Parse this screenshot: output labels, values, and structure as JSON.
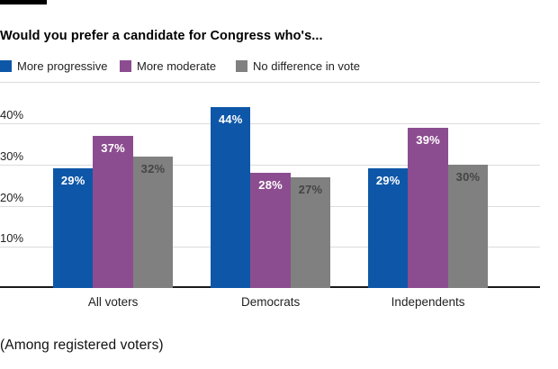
{
  "header": {
    "title": "Would you prefer a candidate for Congress who's..."
  },
  "footnote": "(Among registered voters)",
  "chart_data": {
    "type": "bar",
    "title": "Would you prefer a candidate for Congress who's...",
    "categories": [
      "All voters",
      "Democrats",
      "Independents"
    ],
    "series": [
      {
        "name": "More progressive",
        "color": "#0e57a8",
        "label_color": "#ffffff",
        "values": [
          29,
          44,
          29
        ]
      },
      {
        "name": "More moderate",
        "color": "#8c4d90",
        "label_color": "#ffffff",
        "values": [
          37,
          28,
          39
        ]
      },
      {
        "name": "No difference in vote",
        "color": "#808080",
        "label_color": "#454545",
        "values": [
          32,
          27,
          30
        ]
      }
    ],
    "value_suffix": "%",
    "xlabel": "",
    "ylabel": "",
    "yaxis": {
      "min": 0,
      "max": 50,
      "step": 10,
      "labeled_ticks": [
        "10%",
        "20%",
        "30%",
        "40%"
      ],
      "grid": true
    },
    "legend_position": "top",
    "data_labels": "inside-top"
  }
}
